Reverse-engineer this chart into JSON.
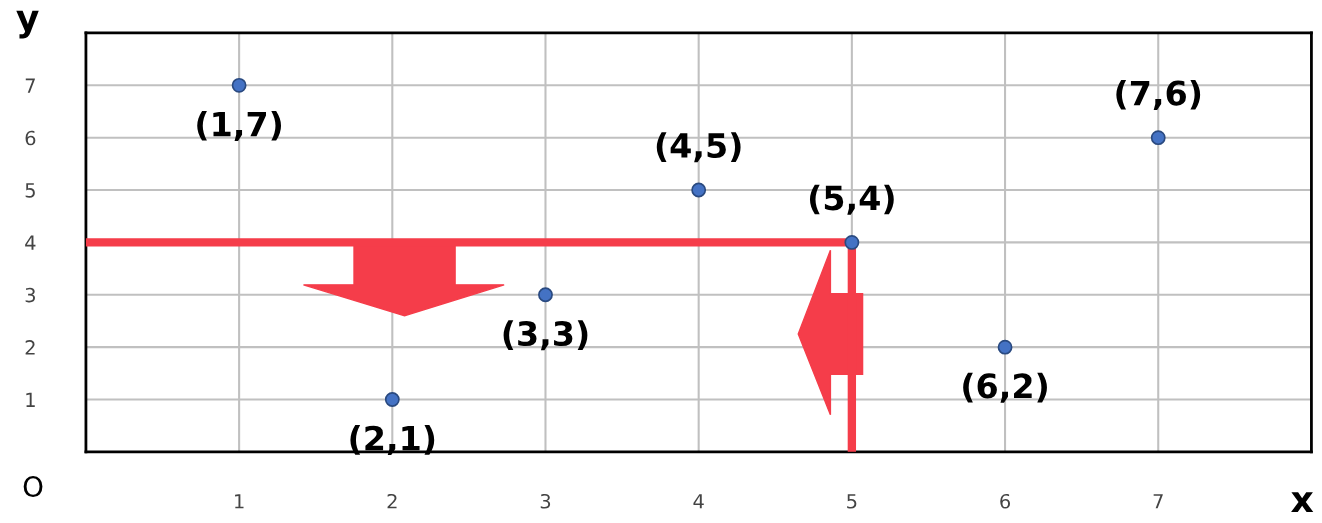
{
  "chart_data": {
    "type": "scatter",
    "xlabel": "x",
    "ylabel": "y",
    "xlim": [
      0,
      8
    ],
    "ylim": [
      0,
      8
    ],
    "xticks": [
      1,
      2,
      3,
      4,
      5,
      6,
      7
    ],
    "yticks": [
      1,
      2,
      3,
      4,
      5,
      6,
      7
    ],
    "grid": true,
    "series": [
      {
        "marker": "circle",
        "color": "#4472c4",
        "x": [
          1,
          2,
          3,
          4,
          5,
          6,
          7
        ],
        "values": [
          7,
          1,
          3,
          5,
          4,
          2,
          6
        ]
      },
      {
        "type": "line",
        "color": "#f53d4a",
        "x": [
          0,
          5,
          5
        ],
        "values": [
          4,
          4,
          0
        ]
      }
    ],
    "annotations": [
      "O",
      {
        "text": "(1,7)",
        "x": 1,
        "y": 7
      },
      {
        "text": "(2,1)",
        "x": 2,
        "y": 1
      },
      {
        "text": "(3,3)",
        "x": 3,
        "y": 3
      },
      {
        "text": "(4,5)",
        "x": 4,
        "y": 5
      },
      {
        "text": "(5,4)",
        "x": 5,
        "y": 4
      },
      {
        "text": "(6,2)",
        "x": 6,
        "y": 2
      },
      {
        "text": "(7,6)",
        "x": 7,
        "y": 6
      }
    ]
  }
}
